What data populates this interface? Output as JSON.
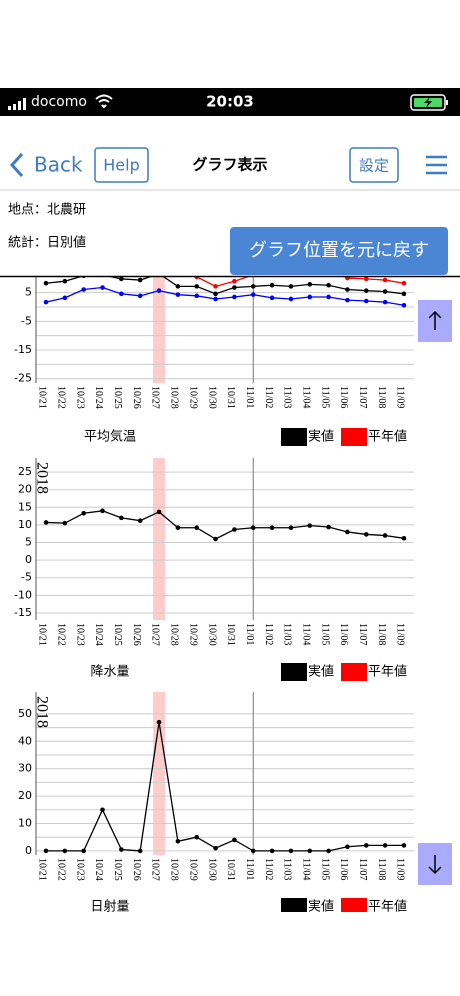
{
  "status_bar": {
    "carrier": "docomo",
    "time": "20:03"
  },
  "nav": {
    "back": "Back",
    "help": "Help",
    "title": "グラフ表示",
    "settings": "設定"
  },
  "info": {
    "location": "地点：北農研",
    "statistic": "統計：日別値"
  },
  "reset_button": "グラフ位置を元に戻す",
  "charts": [
    {
      "type": "line",
      "categories": [
        "10/21",
        "10/22",
        "10/23",
        "10/24",
        "10/25",
        "10/26",
        "10/27",
        "10/28",
        "10/29",
        "10/30",
        "10/31",
        "11/01",
        "11/02",
        "11/03",
        "11/04",
        "11/05",
        "11/06",
        "11/07",
        "11/08",
        "11/09"
      ],
      "series": [
        {
          "color": "#000000",
          "values": [
            8.3,
            9.0,
            10.9,
            11.2,
            9.8,
            9.4,
            11.6,
            7.2,
            7.2,
            4.6,
            6.8,
            7.2,
            7.6,
            7.2,
            7.9,
            7.6,
            6.1,
            5.7,
            5.4,
            4.6
          ]
        },
        {
          "color": "#ff0000",
          "values": [
            null,
            null,
            null,
            null,
            null,
            null,
            null,
            12.3,
            10.5,
            7.2,
            9.0,
            11.2,
            null,
            null,
            null,
            12.8,
            10.1,
            9.8,
            9.4,
            8.3
          ]
        },
        {
          "color": "#0000ff",
          "values": [
            1.7,
            3.2,
            6.1,
            6.8,
            4.6,
            3.9,
            5.7,
            4.3,
            3.9,
            2.8,
            3.5,
            4.3,
            3.2,
            2.8,
            3.5,
            3.5,
            2.4,
            2.1,
            1.7,
            0.6
          ]
        }
      ],
      "ylim": [
        -26.5,
        15
      ],
      "yticks": [
        5,
        -5,
        -15,
        -25
      ],
      "minor_yticks": [
        0,
        -10,
        -20
      ],
      "highlight": "10/27",
      "divider": "11/01"
    },
    {
      "type": "line",
      "title": "平均気温",
      "year": "2018",
      "categories": [
        "10/21",
        "10/22",
        "10/23",
        "10/24",
        "10/25",
        "10/26",
        "10/27",
        "10/28",
        "10/29",
        "10/30",
        "10/31",
        "11/01",
        "11/02",
        "11/03",
        "11/04",
        "11/05",
        "11/06",
        "11/07",
        "11/08",
        "11/09"
      ],
      "series": [
        {
          "name": "実値",
          "color": "#000000",
          "values": [
            10.7,
            10.5,
            13.3,
            14,
            12,
            11.2,
            13.7,
            9.2,
            9.2,
            6,
            8.7,
            9.2,
            9.2,
            9.2,
            9.8,
            9.4,
            8,
            7.3,
            7,
            6.2
          ]
        },
        {
          "name": "平年値",
          "color": "#ff0000",
          "values": [
            null,
            null,
            null,
            null,
            null,
            null,
            null,
            null,
            null,
            null,
            null,
            null,
            null,
            null,
            null,
            null,
            null,
            null,
            null,
            null
          ]
        }
      ],
      "ylim": [
        -17,
        29
      ],
      "yticks": [
        25,
        20,
        15,
        10,
        5,
        0,
        -5,
        -10,
        -15
      ],
      "highlight": "10/27",
      "divider": "11/01"
    },
    {
      "type": "line",
      "title": "降水量",
      "year": "2018",
      "categories": [
        "10/21",
        "10/22",
        "10/23",
        "10/24",
        "10/25",
        "10/26",
        "10/27",
        "10/28",
        "10/29",
        "10/30",
        "10/31",
        "11/01",
        "11/02",
        "11/03",
        "11/04",
        "11/05",
        "11/06",
        "11/07",
        "11/08",
        "11/09"
      ],
      "series": [
        {
          "name": "実値",
          "color": "#000000",
          "values": [
            0,
            0,
            0,
            15,
            0.5,
            0,
            47,
            3.5,
            5,
            1,
            4,
            0,
            0,
            0,
            0,
            0,
            1.5,
            2,
            2,
            2
          ]
        },
        {
          "name": "平年値",
          "color": "#ff0000",
          "values": [
            null,
            null,
            null,
            null,
            null,
            null,
            null,
            null,
            null,
            null,
            null,
            null,
            null,
            null,
            null,
            null,
            null,
            null,
            null,
            null
          ]
        }
      ],
      "ylim": [
        -1.5,
        58
      ],
      "yticks": [
        50,
        40,
        30,
        20,
        10,
        0
      ],
      "minor_yticks": [
        45,
        35,
        25,
        15,
        5
      ],
      "highlight": "10/27",
      "divider": "11/01"
    },
    {
      "type": "line",
      "title": "日射量",
      "series": [
        {
          "name": "実値",
          "color": "#000000"
        },
        {
          "name": "平年値",
          "color": "#ff0000"
        }
      ]
    }
  ]
}
